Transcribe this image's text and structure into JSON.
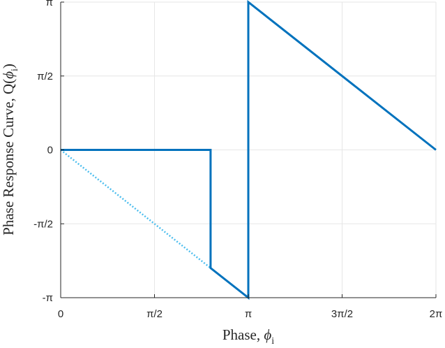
{
  "chart_data": {
    "type": "line",
    "xlabel_text": "Phase, ",
    "xlabel_symbol": "ϕ",
    "xlabel_sub": "i",
    "ylabel_text": "Phase Response Curve, Q(",
    "ylabel_symbol": "ϕ",
    "ylabel_sub": "i",
    "ylabel_close": ")",
    "xlim": [
      0,
      6.2832
    ],
    "ylim": [
      -3.1416,
      3.1416
    ],
    "x_ticks": [
      {
        "value": 0,
        "label": "0"
      },
      {
        "value": 1.5708,
        "label": "π/2"
      },
      {
        "value": 3.1416,
        "label": "π"
      },
      {
        "value": 4.7124,
        "label": "3π/2"
      },
      {
        "value": 6.2832,
        "label": "2π"
      }
    ],
    "y_ticks": [
      {
        "value": -3.1416,
        "label": "-π"
      },
      {
        "value": -1.5708,
        "label": "-π/2"
      },
      {
        "value": 0,
        "label": "0"
      },
      {
        "value": 1.5708,
        "label": "π/2"
      },
      {
        "value": 3.1416,
        "label": "π"
      }
    ],
    "grid": true,
    "series": [
      {
        "color": "#0072BD",
        "style": "solid",
        "points": [
          [
            0,
            0
          ],
          [
            2.51,
            0
          ],
          [
            2.51,
            -2.51
          ],
          [
            3.1416,
            -3.1416
          ],
          [
            3.1416,
            3.1416
          ],
          [
            6.2832,
            0
          ]
        ]
      },
      {
        "color": "#4DBEEE",
        "style": "dotted",
        "points": [
          [
            0,
            0
          ],
          [
            2.51,
            -2.51
          ],
          [
            3.1416,
            -3.1416
          ],
          [
            3.1416,
            3.1416
          ]
        ]
      }
    ]
  }
}
